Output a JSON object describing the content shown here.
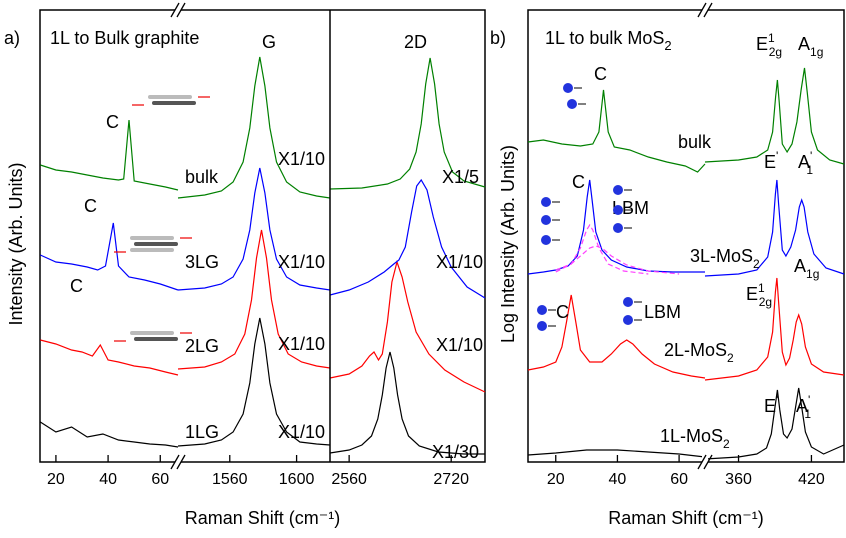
{
  "chart_data": [
    {
      "type": "line",
      "panel_label": "a)",
      "title": "1L to Bulk graphite",
      "xlabel": "Raman Shift (cm⁻¹)",
      "ylabel": "Intensity (Arb. Units)",
      "ylim": [
        0,
        452
      ],
      "segments": [
        {
          "xlim": [
            13.9,
            66.8
          ],
          "xticks": [
            20,
            40,
            60
          ]
        },
        {
          "xlim": [
            1529,
            1620
          ],
          "xticks": [
            1560,
            1600
          ]
        },
        {
          "xlim": [
            2530,
            2773
          ],
          "xticks": [
            2560,
            2720
          ]
        }
      ],
      "series": [
        {
          "color": "#000000",
          "segment": 0,
          "x": [
            14,
            20,
            26,
            32,
            38,
            44,
            50,
            56,
            62,
            66.8
          ],
          "values": [
            40,
            30,
            35,
            25,
            28,
            22,
            20,
            18,
            17,
            15
          ]
        },
        {
          "color": "#000000",
          "segment": 1,
          "x": [
            1529,
            1545,
            1555,
            1562,
            1568,
            1572,
            1575,
            1578,
            1581,
            1584,
            1588,
            1594,
            1602,
            1612,
            1620
          ],
          "values": [
            16,
            18,
            22,
            30,
            48,
            79,
            118,
            144,
            118,
            79,
            48,
            30,
            20,
            18,
            17
          ]
        },
        {
          "color": "#000000",
          "segment": 2,
          "x": [
            2530,
            2560,
            2580,
            2595,
            2605,
            2612,
            2618,
            2624,
            2630,
            2636,
            2643,
            2653,
            2670,
            2700,
            2740,
            2773
          ],
          "values": [
            9,
            12,
            17,
            26,
            43,
            67,
            94,
            110,
            94,
            67,
            43,
            26,
            16,
            10,
            8,
            8
          ]
        },
        {
          "color": "#ff0000",
          "segment": 0,
          "x": [
            14,
            20,
            26,
            30,
            34,
            37,
            40,
            44,
            50,
            56,
            62,
            66.8
          ],
          "values": [
            122,
            118,
            112,
            110,
            106,
            117,
            102,
            100,
            96,
            94,
            90,
            87
          ]
        },
        {
          "color": "#ff0000",
          "segment": 1,
          "x": [
            1529,
            1545,
            1555,
            1563,
            1569,
            1573,
            1576,
            1579,
            1582,
            1585,
            1589,
            1595,
            1603,
            1612,
            1620
          ],
          "values": [
            93,
            95,
            100,
            108,
            128,
            162,
            204,
            232,
            204,
            162,
            128,
            108,
            100,
            96,
            94
          ]
        },
        {
          "color": "#ff0000",
          "segment": 2,
          "x": [
            2530,
            2560,
            2580,
            2592,
            2599,
            2606,
            2612,
            2620,
            2627,
            2635,
            2643,
            2652,
            2665,
            2685,
            2710,
            2740,
            2773
          ],
          "values": [
            84,
            88,
            96,
            106,
            110,
            102,
            108,
            140,
            180,
            200,
            185,
            160,
            130,
            108,
            92,
            80,
            70
          ]
        },
        {
          "color": "#0000ff",
          "segment": 0,
          "x": [
            14,
            20,
            26,
            32,
            36,
            39,
            42,
            44,
            48,
            54,
            60,
            66.8
          ],
          "values": [
            207,
            200,
            198,
            195,
            192,
            196,
            239,
            196,
            185,
            182,
            178,
            172
          ]
        },
        {
          "color": "#0000ff",
          "segment": 1,
          "x": [
            1529,
            1545,
            1555,
            1562,
            1568,
            1572,
            1575,
            1578,
            1581,
            1584,
            1588,
            1594,
            1602,
            1612,
            1620
          ],
          "values": [
            172,
            174,
            178,
            185,
            203,
            232,
            269,
            294,
            269,
            232,
            203,
            185,
            177,
            174,
            172
          ]
        },
        {
          "color": "#0000ff",
          "segment": 2,
          "x": [
            2530,
            2560,
            2590,
            2615,
            2630,
            2638,
            2648,
            2658,
            2666,
            2673,
            2682,
            2692,
            2705,
            2720,
            2745,
            2773
          ],
          "values": [
            167,
            172,
            180,
            190,
            198,
            202,
            215,
            250,
            276,
            282,
            272,
            245,
            215,
            195,
            175,
            164
          ]
        },
        {
          "color": "#008000",
          "segment": 0,
          "x": [
            14,
            20,
            26,
            32,
            38,
            44,
            46,
            48,
            50,
            56,
            62,
            66.8
          ],
          "values": [
            297,
            292,
            290,
            287,
            284,
            282,
            283,
            342,
            281,
            278,
            275,
            272
          ]
        },
        {
          "color": "#008000",
          "segment": 1,
          "x": [
            1529,
            1545,
            1555,
            1562,
            1568,
            1572,
            1575,
            1578,
            1581,
            1584,
            1588,
            1594,
            1602,
            1612,
            1620
          ],
          "values": [
            264,
            267,
            271,
            280,
            300,
            334,
            376,
            405,
            376,
            334,
            300,
            280,
            270,
            266,
            264
          ]
        },
        {
          "color": "#008000",
          "segment": 2,
          "x": [
            2530,
            2580,
            2620,
            2640,
            2655,
            2665,
            2673,
            2680,
            2687,
            2694,
            2701,
            2709,
            2722,
            2740,
            2773
          ],
          "values": [
            273,
            274,
            278,
            283,
            293,
            310,
            338,
            378,
            404,
            378,
            338,
            310,
            290,
            281,
            275
          ]
        }
      ],
      "annotations": [
        {
          "text": "G"
        },
        {
          "text": "2D"
        },
        {
          "text": "C"
        },
        {
          "text": "C"
        },
        {
          "text": "C"
        },
        {
          "text": "bulk"
        },
        {
          "text": "3LG"
        },
        {
          "text": "2LG"
        },
        {
          "text": "1LG"
        },
        {
          "text": "X1/10"
        },
        {
          "text": "X1/10"
        },
        {
          "text": "X1/10"
        },
        {
          "text": "X1/10"
        },
        {
          "text": "X1/5"
        },
        {
          "text": "X1/10"
        },
        {
          "text": "X1/10"
        },
        {
          "text": "X1/30"
        }
      ]
    },
    {
      "type": "line",
      "panel_label": "b)",
      "title": "1L to bulk MoS",
      "title_sub": "2",
      "xlabel": "Raman Shift (cm⁻¹)",
      "ylabel": "Log Intensity (Arb. Units)",
      "ylim": [
        0,
        452
      ],
      "segments": [
        {
          "xlim": [
            11,
            68.4
          ],
          "xticks": [
            20,
            40,
            60
          ]
        },
        {
          "xlim": [
            332.4,
            446.8
          ],
          "xticks": [
            360,
            420
          ]
        }
      ],
      "series": [
        {
          "color": "#000000",
          "segment": 0,
          "x": [
            11,
            20,
            30,
            40,
            50,
            60,
            68.4
          ],
          "values": [
            7,
            9,
            12,
            12,
            10,
            8,
            5
          ]
        },
        {
          "color": "#000000",
          "segment": 1,
          "x": [
            332.4,
            360,
            375,
            383,
            387,
            390,
            392,
            394,
            397,
            400,
            404,
            407,
            409.5,
            412,
            415,
            420,
            430,
            446.8
          ],
          "values": [
            3,
            5,
            8,
            14,
            28,
            55,
            72,
            52,
            28,
            24,
            33,
            55,
            74,
            55,
            30,
            15,
            8,
            17
          ]
        },
        {
          "color": "#ff0000",
          "segment": 0,
          "x": [
            11,
            16,
            20,
            22,
            23.5,
            25,
            26.5,
            28,
            31,
            35,
            38,
            41,
            43,
            45,
            48,
            52,
            58,
            64,
            68.4
          ],
          "values": [
            92,
            95,
            100,
            115,
            140,
            167,
            140,
            112,
            100,
            100,
            108,
            118,
            122,
            118,
            108,
            98,
            90,
            86,
            84
          ]
        },
        {
          "color": "#ff0000",
          "segment": 1,
          "x": [
            332.4,
            360,
            375,
            384,
            388,
            390.3,
            391.6,
            393,
            396,
            399,
            402,
            405,
            407.5,
            409.5,
            412,
            415,
            420,
            430,
            446.8
          ],
          "values": [
            82,
            86,
            92,
            105,
            130,
            170,
            184,
            160,
            110,
            97,
            104,
            122,
            140,
            147,
            138,
            115,
            98,
            90,
            87
          ]
        },
        {
          "color": "#0000ff",
          "segment": 0,
          "x": [
            11,
            16,
            20,
            24,
            27,
            29,
            30.2,
            31,
            31.8,
            33,
            35,
            38,
            43,
            50,
            58,
            68.4
          ],
          "values": [
            188,
            190,
            192,
            196,
            206,
            232,
            265,
            282,
            262,
            230,
            212,
            202,
            195,
            191,
            190,
            190
          ]
        },
        {
          "color": "#ff40ff",
          "dashed": true,
          "segment": 0,
          "x": [
            20,
            25,
            28,
            30,
            31,
            32,
            34,
            37,
            42,
            50
          ],
          "values": [
            190,
            198,
            214,
            232,
            237,
            232,
            214,
            198,
            191,
            188
          ]
        },
        {
          "color": "#ff40ff",
          "dashed": true,
          "segment": 0,
          "x": [
            20,
            25,
            28,
            31,
            33,
            35,
            38,
            43,
            50,
            60
          ],
          "values": [
            192,
            198,
            206,
            214,
            216,
            214,
            206,
            197,
            191,
            188
          ]
        },
        {
          "color": "#0000ff",
          "segment": 1,
          "x": [
            332.4,
            360,
            375,
            384,
            388,
            390.3,
            391.6,
            393,
            396,
            399,
            403,
            407,
            410,
            412,
            414,
            417,
            422,
            432,
            446.8
          ],
          "values": [
            186,
            188,
            192,
            205,
            230,
            268,
            282,
            258,
            212,
            206,
            215,
            232,
            255,
            262,
            255,
            230,
            208,
            194,
            188
          ]
        },
        {
          "color": "#008000",
          "segment": 0,
          "x": [
            11,
            16,
            22,
            28,
            32,
            34,
            35.5,
            37,
            39,
            44,
            50,
            56,
            62,
            66,
            68.4
          ],
          "values": [
            320,
            322,
            318,
            316,
            318,
            330,
            372,
            330,
            315,
            312,
            305,
            300,
            296,
            290,
            298
          ]
        },
        {
          "color": "#008000",
          "segment": 1,
          "x": [
            332.4,
            360,
            375,
            384,
            388,
            390.5,
            392,
            393.5,
            396,
            400,
            404,
            408,
            411.5,
            414.3,
            416.5,
            420,
            425,
            435,
            446.8
          ],
          "values": [
            300,
            302,
            305,
            312,
            330,
            365,
            382,
            360,
            318,
            310,
            318,
            340,
            372,
            394,
            370,
            330,
            312,
            302,
            298
          ]
        }
      ],
      "annotations": [
        {
          "text": "C"
        },
        {
          "text": "C"
        },
        {
          "text": "C"
        },
        {
          "text": "bulk"
        },
        {
          "text": "LBM"
        },
        {
          "text": "LBM"
        },
        {
          "text": "E",
          "sup": "1",
          "sub": "2g"
        },
        {
          "text": "A",
          "sub": "1g"
        },
        {
          "text": "E",
          "sup": "'"
        },
        {
          "text": "A",
          "sup": "'",
          "sub": "1"
        },
        {
          "text": "3L-MoS",
          "sub": "2"
        },
        {
          "text": "E",
          "sup": "1",
          "sub": "2g"
        },
        {
          "text": "A",
          "sub": "1g"
        },
        {
          "text": "2L-MoS",
          "sub": "2"
        },
        {
          "text": "E",
          "sup": "'"
        },
        {
          "text": "A",
          "sup": "'",
          "sub": "1"
        },
        {
          "text": "1L-MoS",
          "sub": "2"
        }
      ]
    }
  ]
}
